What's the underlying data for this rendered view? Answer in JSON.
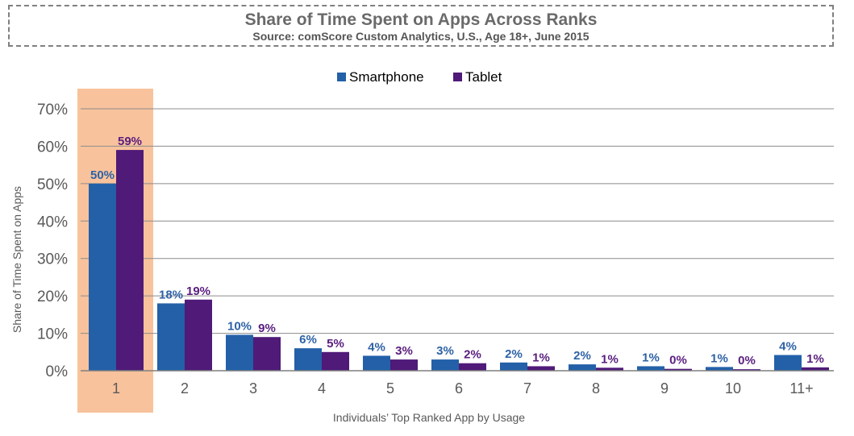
{
  "chart_data": {
    "type": "bar",
    "title": "Share of Time Spent on Apps Across Ranks",
    "subtitle": "Source: comScore Custom Analytics, U.S., Age 18+, June 2015",
    "xlabel": "Individuals’ Top Ranked App by Usage",
    "ylabel": "Share of Time Spent on Apps",
    "categories": [
      "1",
      "2",
      "3",
      "4",
      "5",
      "6",
      "7",
      "8",
      "9",
      "10",
      "11+"
    ],
    "series": [
      {
        "name": "Smartphone",
        "color": "#2360a8",
        "values": [
          50,
          18,
          9.6,
          6,
          4,
          3,
          2.2,
          1.7,
          1.2,
          1,
          4.2
        ],
        "labels": [
          "50%",
          "18%",
          "10%",
          "6%",
          "4%",
          "3%",
          "2%",
          "2%",
          "1%",
          "1%",
          "4%"
        ],
        "label_color": "#2e62a6"
      },
      {
        "name": "Tablet",
        "color": "#4f1a78",
        "values": [
          59,
          19,
          9,
          5,
          3,
          2,
          1.2,
          0.8,
          0.5,
          0.4,
          0.9
        ],
        "labels": [
          "59%",
          "19%",
          "9%",
          "5%",
          "3%",
          "2%",
          "1%",
          "1%",
          "0%",
          "0%",
          "1%"
        ],
        "label_color": "#5a1e7f"
      }
    ],
    "ylim": [
      0,
      70
    ],
    "yticks": [
      0,
      10,
      20,
      30,
      40,
      50,
      60,
      70
    ],
    "ytick_format": "%",
    "grid": true,
    "legend": "top-center",
    "highlight": {
      "category": "1",
      "color": "#f8c29c"
    }
  }
}
